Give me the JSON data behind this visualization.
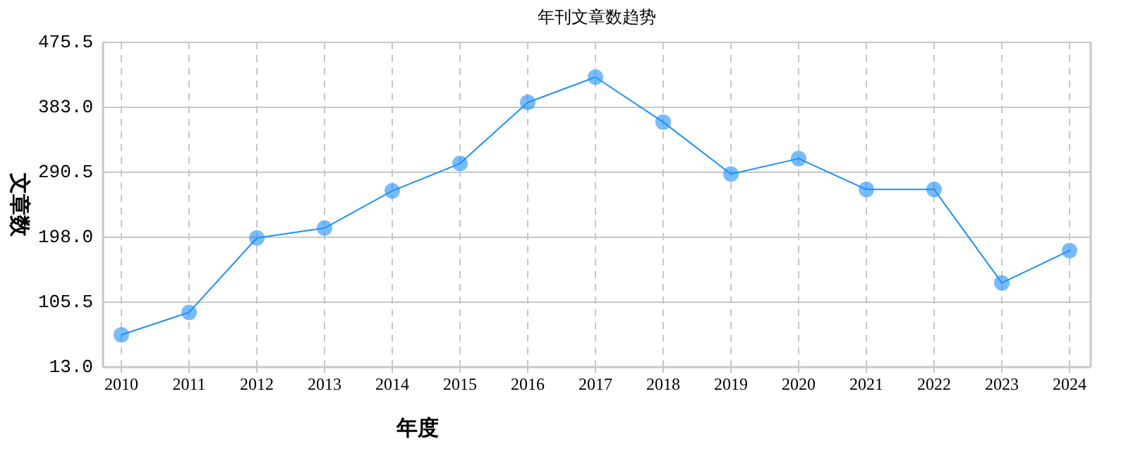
{
  "chart_data": {
    "type": "line",
    "title": "年刊文章数趋势",
    "xlabel": "年度",
    "ylabel": "文章数",
    "categories": [
      "2010",
      "2011",
      "2012",
      "2013",
      "2014",
      "2015",
      "2016",
      "2017",
      "2018",
      "2019",
      "2020",
      "2021",
      "2022",
      "2023",
      "2024"
    ],
    "series": [
      {
        "color": "#1e90ff",
        "values": [
          59,
          91,
          197,
          211,
          264,
          303,
          390,
          426,
          362,
          288,
          310,
          266,
          266,
          133,
          179
        ]
      }
    ],
    "ylim": [
      13.0,
      475.5
    ],
    "yticks": [
      {
        "value": 13.0,
        "label": "13.0"
      },
      {
        "value": 105.5,
        "label": "105.5"
      },
      {
        "value": 198.0,
        "label": "198.0"
      },
      {
        "value": 290.5,
        "label": "290.5"
      },
      {
        "value": 383.0,
        "label": "383.0"
      },
      {
        "value": 475.5,
        "label": "475.5"
      }
    ],
    "grid": true,
    "marker": "circle",
    "line_style": "solid"
  }
}
